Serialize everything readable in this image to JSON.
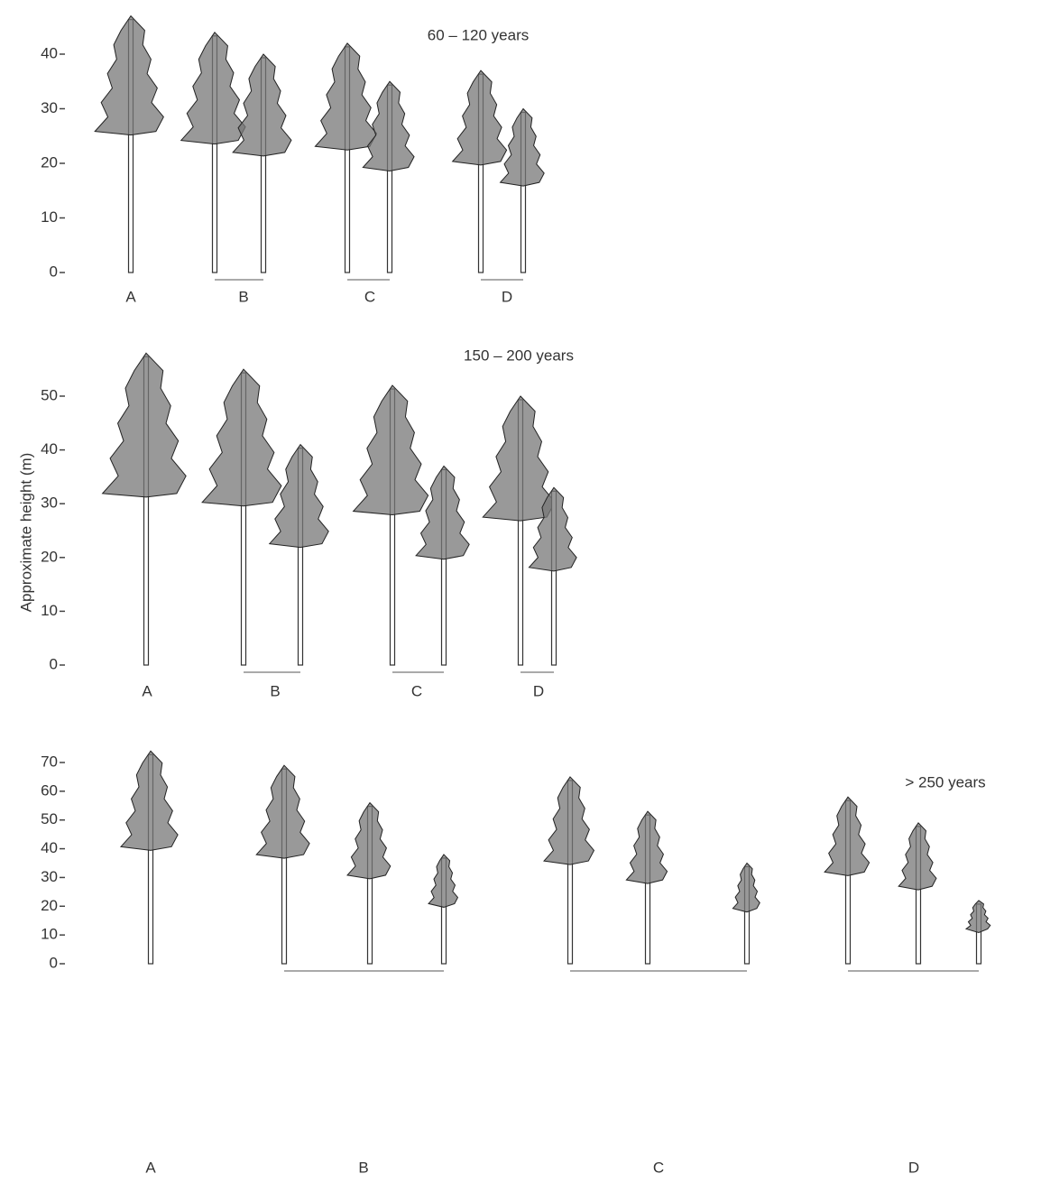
{
  "y_axis_label": "Approximate height (m)",
  "panels": [
    {
      "title": "60 – 120 years",
      "yticks": [
        0,
        10,
        20,
        30,
        40
      ],
      "groups": [
        {
          "label": "A",
          "trees": [
            47
          ]
        },
        {
          "label": "B",
          "trees": [
            44,
            40
          ]
        },
        {
          "label": "C",
          "trees": [
            42,
            35
          ]
        },
        {
          "label": "D",
          "trees": [
            37,
            30
          ]
        }
      ]
    },
    {
      "title": "150 – 200 years",
      "yticks": [
        0,
        10,
        20,
        30,
        40,
        50
      ],
      "groups": [
        {
          "label": "A",
          "trees": [
            58
          ]
        },
        {
          "label": "B",
          "trees": [
            55,
            41
          ]
        },
        {
          "label": "C",
          "trees": [
            52,
            37
          ]
        },
        {
          "label": "D",
          "trees": [
            50,
            33
          ]
        }
      ]
    },
    {
      "title": "> 250 years",
      "yticks": [
        0,
        10,
        20,
        30,
        40,
        50,
        60,
        70
      ],
      "groups": [
        {
          "label": "A",
          "trees": [
            74
          ]
        },
        {
          "label": "B",
          "trees": [
            69,
            56,
            38
          ]
        },
        {
          "label": "C",
          "trees": [
            65,
            53,
            35
          ]
        },
        {
          "label": "D",
          "trees": [
            58,
            49,
            22
          ]
        }
      ]
    }
  ]
}
